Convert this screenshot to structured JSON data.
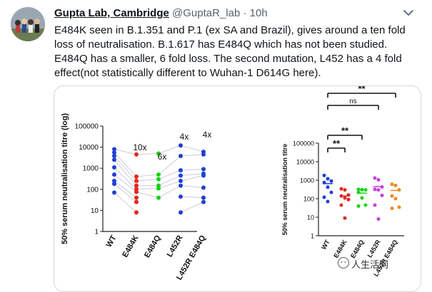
{
  "tweet": {
    "author_name": "Gupta Lab, Cambridge",
    "handle": "@GuptaR_lab",
    "separator": "·",
    "time": "10h",
    "text": "E484K seen in B.1.351 and P.1 (ex SA and Brazil), gives around a ten fold loss of neutralisation. B.1.617 has E484Q which has not been studied. E484Q has a smaller, 6 fold loss. The second mutation, L452 has a 4 fold effect(not statistically different to Wuhan-1 D614G here).",
    "watermark": "人生活网",
    "menu_icon": "chevron-down-icon"
  },
  "chart_data": [
    {
      "type": "scatter",
      "ylabel": "50% serum neutralisation titre (log)",
      "yscale": "log",
      "ylim": [
        1,
        100000
      ],
      "yticks": [
        "1",
        "10",
        "100",
        "1000",
        "10000",
        "100000"
      ],
      "categories": [
        "WT",
        "E484K",
        "E484Q",
        "L452R",
        "L452R E484Q"
      ],
      "colors": [
        "#1f3fd6",
        "#e8251f",
        "#14d414",
        "#1f3fd6",
        "#1f3fd6"
      ],
      "annotations": [
        "",
        "10x",
        "6x",
        "4x",
        "4x"
      ],
      "points": [
        [
          8000,
          5500,
          3800,
          2500,
          1100,
          500,
          250,
          180,
          70
        ],
        [
          4500,
          400,
          250,
          150,
          100,
          75,
          40,
          25,
          8
        ],
        [
          5000,
          500,
          300,
          150,
          110,
          40
        ],
        [
          12000,
          3800,
          800,
          450,
          250,
          150,
          45,
          8
        ],
        [
          6000,
          4500,
          900,
          550,
          450,
          120,
          40,
          25
        ]
      ]
    },
    {
      "type": "scatter",
      "ylabel": "50% serum neutralisation titre",
      "yscale": "log",
      "ylim": [
        1,
        100000
      ],
      "yticks": [
        "1",
        "10",
        "100",
        "1000",
        "10000",
        "100000"
      ],
      "categories": [
        "WT",
        "E484K",
        "E484Q",
        "L452R",
        "L452R E484Q"
      ],
      "colors": [
        "#1f3fd6",
        "#e8251f",
        "#14d414",
        "#c93fe0",
        "#f08a1c"
      ],
      "means": [
        650,
        140,
        200,
        450,
        280
      ],
      "points": [
        [
          1800,
          1200,
          900,
          750,
          420,
          220,
          120,
          70
        ],
        [
          340,
          300,
          160,
          140,
          110,
          90,
          45,
          9
        ],
        [
          320,
          310,
          300,
          220,
          110,
          45,
          40
        ],
        [
          1300,
          1050,
          430,
          320,
          300,
          150,
          45,
          8
        ],
        [
          600,
          520,
          300,
          140,
          100,
          35,
          30
        ]
      ],
      "brackets": [
        {
          "from": 0,
          "to": 1,
          "label": "**"
        },
        {
          "from": 0,
          "to": 2,
          "label": "**"
        },
        {
          "from": 0,
          "to": 3,
          "label": "ns"
        },
        {
          "from": 0,
          "to": 4,
          "label": "**"
        }
      ]
    }
  ]
}
